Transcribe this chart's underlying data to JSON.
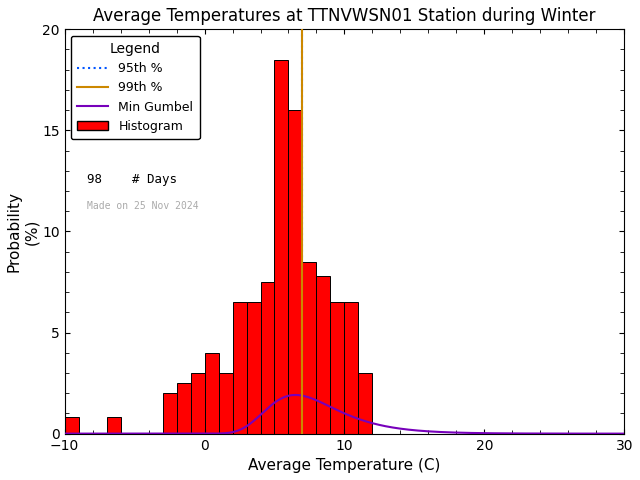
{
  "title": "Average Temperatures at TTNVWSN01 Station during Winter",
  "xlabel": "Average Temperature (C)",
  "ylabel": "Probability\n(%)",
  "background_color": "#ffffff",
  "xlim": [
    -10,
    30
  ],
  "ylim": [
    0,
    20
  ],
  "yticks": [
    0,
    5,
    10,
    15,
    20
  ],
  "xticks": [
    -10,
    0,
    10,
    20,
    30
  ],
  "bar_edges": [
    -10,
    -9,
    -8,
    -7,
    -6,
    -5,
    -4,
    -3,
    -2,
    -1,
    0,
    1,
    2,
    3,
    4,
    5,
    6,
    7,
    8,
    9,
    10,
    11,
    12,
    13
  ],
  "bar_heights": [
    0.8,
    0.0,
    0.0,
    0.8,
    0.0,
    0.0,
    0.0,
    2.0,
    2.5,
    3.0,
    4.0,
    3.0,
    6.5,
    6.5,
    7.5,
    18.5,
    16.0,
    8.5,
    7.8,
    6.5,
    6.5,
    3.0,
    0.0
  ],
  "bar_color": "#ff0000",
  "bar_edgecolor": "#000000",
  "gumbel_mu": 6.5,
  "gumbel_beta": 2.5,
  "gumbel_scale": 13.0,
  "percentile_95": 7.0,
  "percentile_99": 7.0,
  "n_days": 98,
  "legend_title": "Legend",
  "made_on_text": "Made on 25 Nov 2024",
  "title_fontsize": 12,
  "axis_fontsize": 11,
  "tick_fontsize": 10
}
